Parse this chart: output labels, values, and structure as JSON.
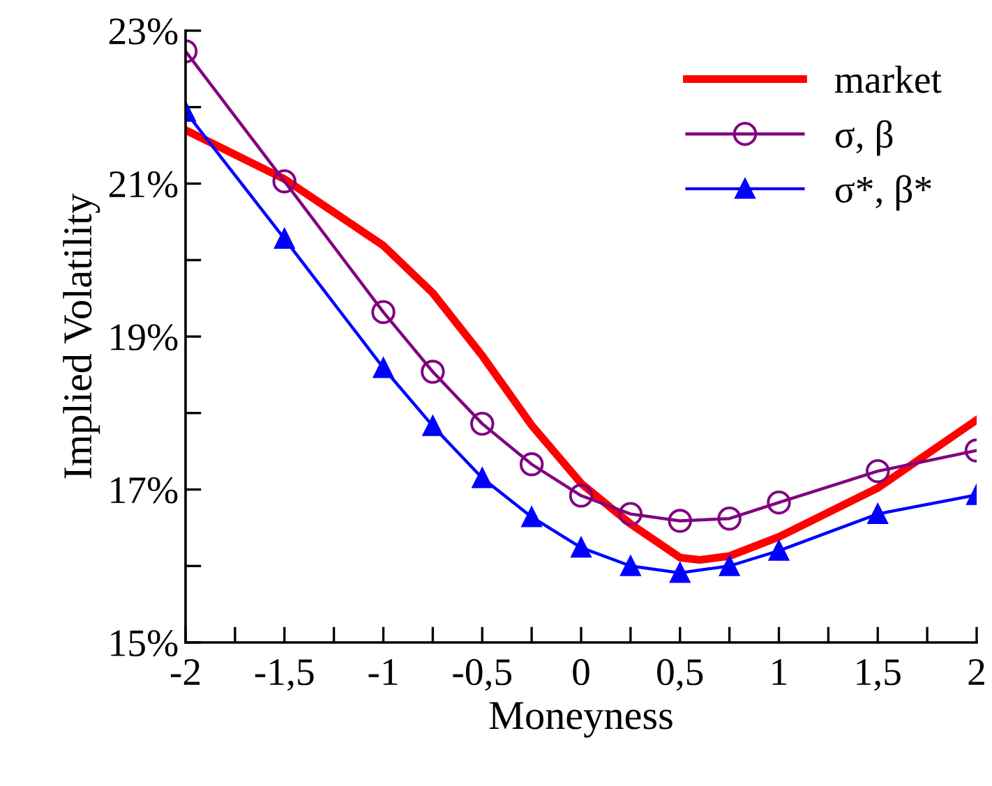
{
  "chart_data": {
    "type": "line",
    "xlabel": "Moneyness",
    "ylabel": "Implied Volatility",
    "xlim": [
      -2,
      2
    ],
    "ylim": [
      15,
      23
    ],
    "xticks": [
      {
        "value": -2,
        "label": "-2"
      },
      {
        "value": -1.75,
        "label": null
      },
      {
        "value": -1.5,
        "label": "-1,5"
      },
      {
        "value": -1.25,
        "label": null
      },
      {
        "value": -1,
        "label": "-1"
      },
      {
        "value": -0.75,
        "label": null
      },
      {
        "value": -0.5,
        "label": "-0,5"
      },
      {
        "value": -0.25,
        "label": null
      },
      {
        "value": 0,
        "label": "0"
      },
      {
        "value": 0.25,
        "label": null
      },
      {
        "value": 0.5,
        "label": "0,5"
      },
      {
        "value": 0.75,
        "label": null
      },
      {
        "value": 1,
        "label": "1"
      },
      {
        "value": 1.25,
        "label": null
      },
      {
        "value": 1.5,
        "label": "1,5"
      },
      {
        "value": 1.75,
        "label": null
      },
      {
        "value": 2,
        "label": "2"
      }
    ],
    "yticks": [
      {
        "value": 15,
        "label": "15%"
      },
      {
        "value": 16,
        "label": null
      },
      {
        "value": 17,
        "label": "17%"
      },
      {
        "value": 18,
        "label": null
      },
      {
        "value": 19,
        "label": "19%"
      },
      {
        "value": 20,
        "label": null
      },
      {
        "value": 21,
        "label": "21%"
      },
      {
        "value": 22,
        "label": null
      },
      {
        "value": 23,
        "label": "23%"
      }
    ],
    "grid": false,
    "legend": "top right",
    "series": [
      {
        "name": "market",
        "color": "#ff0000",
        "marker": "none",
        "x": [
          -2,
          -1.5,
          -1,
          -0.75,
          -0.5,
          -0.25,
          0,
          0.25,
          0.5,
          0.6,
          0.75,
          1,
          1.5,
          2
        ],
        "values": [
          21.7,
          21.06,
          20.19,
          19.57,
          18.75,
          17.84,
          17.08,
          16.55,
          16.11,
          16.08,
          16.13,
          16.38,
          17.02,
          17.91
        ]
      },
      {
        "name": "σ, β",
        "color": "#800080",
        "marker": "circle",
        "x": [
          -2,
          -1.5,
          -1,
          -0.75,
          -0.5,
          -0.25,
          0,
          0.25,
          0.5,
          0.75,
          1,
          1.5,
          2
        ],
        "values": [
          22.73,
          21.03,
          19.32,
          18.54,
          17.86,
          17.33,
          16.92,
          16.68,
          16.59,
          16.62,
          16.83,
          17.24,
          17.51
        ]
      },
      {
        "name": "σ*, β*",
        "color": "#0000ff",
        "marker": "triangle",
        "x": [
          -2,
          -1.5,
          -1,
          -0.75,
          -0.5,
          -0.25,
          0,
          0.25,
          0.5,
          0.75,
          1,
          1.5,
          2
        ],
        "values": [
          21.94,
          20.28,
          18.59,
          17.83,
          17.15,
          16.64,
          16.24,
          16.0,
          15.91,
          16.0,
          16.2,
          16.68,
          16.93
        ]
      }
    ]
  }
}
